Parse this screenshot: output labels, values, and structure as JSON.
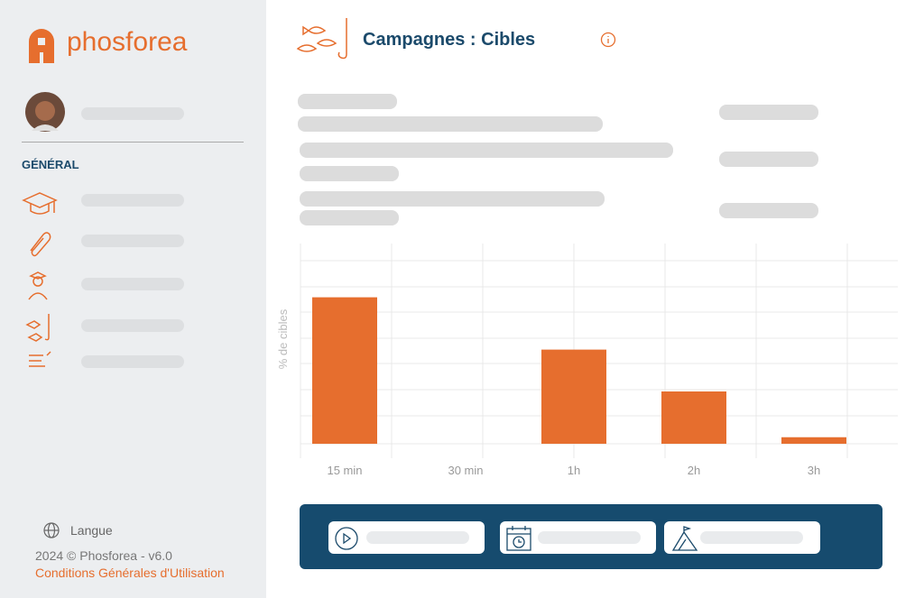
{
  "sidebar": {
    "brand": "phosforea",
    "section": "GÉNÉRAL",
    "language": "Langue",
    "version": "2024 © Phosforea - v6.0",
    "terms": "Conditions Générales d'Utilisation"
  },
  "header": {
    "title": "Campagnes : Cibles"
  },
  "chart_data": {
    "type": "bar",
    "y_label": "% de cibles",
    "categories": [
      "15 min",
      "30 min",
      "1h",
      "2h",
      "3h"
    ],
    "values": [
      56,
      null,
      36,
      20,
      2.5
    ],
    "color": "#e66e2e",
    "ylim": [
      0,
      70
    ],
    "grid": true
  }
}
